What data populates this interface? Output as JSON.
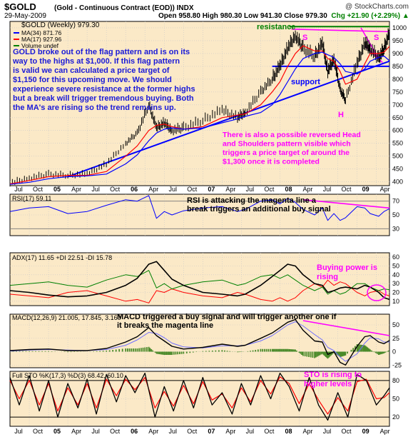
{
  "header": {
    "symbol": "$GOLD",
    "name": "(Gold - Continuous Contract (EOD)) INDX",
    "date": "29-May-2009",
    "brand": "@ StockCharts.com",
    "ohlc": "Open 958.80  High 980.30  Low 941.30  Close 979.30",
    "chg": "Chg +21.90 (+2.29%) ▲"
  },
  "colors": {
    "panel_bg": "#fbe9c7",
    "price": "#000000",
    "ma34": "#0000ff",
    "ma17": "#ff0000",
    "trend": "#0000ff",
    "magenta": "#ff00ff",
    "resistance": "#008000",
    "osc_red": "#ff0000",
    "osc_green": "#008000",
    "macd_signal": "#7070ff",
    "hist": "#4a8a2a"
  },
  "time_axis": {
    "labels": [
      "Jul",
      "Oct",
      "05",
      "Apr",
      "Jul",
      "Oct",
      "06",
      "Apr",
      "Jul",
      "Oct",
      "07",
      "Apr",
      "Jul",
      "Oct",
      "08",
      "Apr",
      "Jul",
      "Oct",
      "09",
      "Apr"
    ],
    "bold": [
      2,
      6,
      10,
      14,
      18
    ]
  },
  "chart_data": [
    {
      "type": "line",
      "title": "$GOLD (Weekly) 979.30",
      "legend": [
        {
          "name": "MA(34) 871.76"
        },
        {
          "name": "MA(17) 927.96"
        },
        {
          "name": "Volume undef"
        }
      ],
      "ylim": [
        385,
        1025
      ],
      "y_ticks": [
        400,
        450,
        500,
        550,
        600,
        650,
        700,
        750,
        800,
        850,
        900,
        950,
        1000
      ],
      "x_range": [
        2004.5,
        2009.42
      ],
      "x": [
        2004.5,
        2004.75,
        2005.0,
        2005.25,
        2005.5,
        2005.75,
        2006.0,
        2006.15,
        2006.3,
        2006.4,
        2006.5,
        2006.6,
        2006.75,
        2007.0,
        2007.25,
        2007.45,
        2007.55,
        2007.75,
        2007.9,
        2008.0,
        2008.1,
        2008.2,
        2008.3,
        2008.45,
        2008.55,
        2008.62,
        2008.7,
        2008.78,
        2008.85,
        2009.0,
        2009.1,
        2009.17,
        2009.28,
        2009.35,
        2009.42
      ],
      "series": [
        {
          "values": [
            395,
            415,
            430,
            425,
            430,
            470,
            550,
            590,
            700,
            610,
            630,
            600,
            610,
            640,
            680,
            650,
            670,
            750,
            800,
            850,
            920,
            970,
            920,
            890,
            940,
            830,
            880,
            760,
            720,
            860,
            940,
            920,
            880,
            920,
            980
          ]
        },
        {
          "values": [
            392,
            405,
            420,
            425,
            425,
            440,
            500,
            540,
            600,
            620,
            625,
            615,
            605,
            615,
            650,
            660,
            665,
            700,
            750,
            790,
            850,
            900,
            930,
            910,
            910,
            880,
            870,
            830,
            780,
            800,
            860,
            900,
            900,
            905,
            928
          ]
        },
        {
          "values": [
            390,
            398,
            412,
            420,
            423,
            430,
            470,
            505,
            560,
            590,
            605,
            610,
            605,
            610,
            630,
            645,
            655,
            670,
            700,
            740,
            790,
            840,
            880,
            900,
            905,
            895,
            885,
            860,
            830,
            820,
            840,
            870,
            885,
            890,
            872
          ]
        }
      ],
      "annotations": [
        {
          "text": "resistance"
        },
        {
          "text": "support"
        },
        {
          "text": "S"
        },
        {
          "text": "S"
        },
        {
          "text": "H"
        }
      ]
    },
    {
      "type": "line",
      "title": "RSI(17) 59.11",
      "ylim": [
        20,
        80
      ],
      "y_ticks": [
        30,
        50,
        70
      ],
      "x": [
        2004.5,
        2004.75,
        2005.0,
        2005.25,
        2005.5,
        2005.75,
        2006.0,
        2006.15,
        2006.3,
        2006.4,
        2006.5,
        2006.6,
        2006.75,
        2007.0,
        2007.25,
        2007.45,
        2007.55,
        2007.75,
        2007.9,
        2008.0,
        2008.1,
        2008.2,
        2008.3,
        2008.45,
        2008.55,
        2008.62,
        2008.7,
        2008.78,
        2008.85,
        2009.0,
        2009.1,
        2009.17,
        2009.28,
        2009.35,
        2009.42
      ],
      "series": [
        {
          "values": [
            55,
            60,
            62,
            52,
            55,
            64,
            72,
            70,
            78,
            45,
            55,
            50,
            56,
            60,
            62,
            55,
            58,
            70,
            72,
            66,
            74,
            68,
            58,
            50,
            60,
            42,
            52,
            42,
            46,
            62,
            60,
            52,
            48,
            55,
            59
          ]
        }
      ]
    },
    {
      "type": "line",
      "title": "ADX(17) 11.65 +DI 22.51 -DI 15.78",
      "ylim": [
        5,
        65
      ],
      "y_ticks": [
        10,
        20,
        30,
        40,
        50,
        60
      ],
      "x": [
        2004.5,
        2004.75,
        2005.0,
        2005.25,
        2005.5,
        2005.75,
        2006.0,
        2006.15,
        2006.3,
        2006.4,
        2006.5,
        2006.6,
        2006.75,
        2007.0,
        2007.25,
        2007.45,
        2007.55,
        2007.75,
        2007.9,
        2008.0,
        2008.1,
        2008.2,
        2008.3,
        2008.45,
        2008.55,
        2008.62,
        2008.7,
        2008.78,
        2008.85,
        2009.0,
        2009.1,
        2009.17,
        2009.28,
        2009.35,
        2009.42
      ],
      "series": [
        {
          "name": "ADX(17)",
          "values": [
            22,
            20,
            17,
            15,
            16,
            20,
            28,
            36,
            52,
            55,
            45,
            35,
            28,
            20,
            18,
            16,
            18,
            28,
            38,
            45,
            52,
            50,
            40,
            30,
            28,
            20,
            22,
            25,
            26,
            24,
            28,
            26,
            20,
            14,
            12
          ]
        },
        {
          "name": "+DI",
          "values": [
            28,
            30,
            32,
            28,
            26,
            34,
            40,
            38,
            45,
            25,
            30,
            24,
            28,
            32,
            34,
            28,
            30,
            38,
            40,
            36,
            40,
            34,
            28,
            22,
            26,
            18,
            22,
            18,
            20,
            30,
            30,
            26,
            22,
            24,
            23
          ]
        },
        {
          "name": "-DI",
          "values": [
            18,
            16,
            14,
            20,
            22,
            16,
            10,
            12,
            8,
            22,
            20,
            24,
            20,
            16,
            14,
            20,
            18,
            12,
            10,
            14,
            10,
            14,
            22,
            30,
            26,
            34,
            28,
            32,
            30,
            20,
            16,
            20,
            22,
            18,
            16
          ]
        }
      ]
    },
    {
      "type": "line",
      "title": "MACD(12,26,9) 21.005, 17.845, 3.160",
      "ylim": [
        -30,
        70
      ],
      "y_ticks": [
        -25,
        0,
        25,
        50
      ],
      "x": [
        2004.5,
        2004.75,
        2005.0,
        2005.25,
        2005.5,
        2005.75,
        2006.0,
        2006.15,
        2006.3,
        2006.4,
        2006.5,
        2006.6,
        2006.75,
        2007.0,
        2007.25,
        2007.45,
        2007.55,
        2007.75,
        2007.9,
        2008.0,
        2008.1,
        2008.2,
        2008.3,
        2008.45,
        2008.55,
        2008.62,
        2008.7,
        2008.78,
        2008.85,
        2009.0,
        2009.1,
        2009.17,
        2009.28,
        2009.35,
        2009.42
      ],
      "series": [
        {
          "name": "MACD",
          "values": [
            2,
            4,
            5,
            2,
            2,
            6,
            18,
            28,
            45,
            30,
            20,
            10,
            5,
            8,
            14,
            10,
            12,
            25,
            35,
            45,
            55,
            60,
            40,
            20,
            18,
            -5,
            0,
            -20,
            -25,
            10,
            28,
            30,
            18,
            15,
            21
          ]
        },
        {
          "name": "Signal",
          "values": [
            1,
            3,
            4,
            3,
            2,
            4,
            12,
            22,
            36,
            34,
            26,
            16,
            9,
            7,
            11,
            11,
            12,
            20,
            30,
            40,
            50,
            56,
            48,
            32,
            22,
            8,
            2,
            -10,
            -18,
            -4,
            16,
            26,
            24,
            18,
            18
          ]
        },
        {
          "name": "Histogram",
          "values": [
            1,
            1,
            1,
            -1,
            0,
            2,
            6,
            6,
            9,
            -4,
            -6,
            -6,
            -4,
            1,
            3,
            -1,
            0,
            5,
            5,
            5,
            5,
            4,
            -8,
            -12,
            -4,
            -13,
            -2,
            -10,
            -7,
            14,
            12,
            4,
            -6,
            -3,
            3
          ]
        }
      ]
    },
    {
      "type": "line",
      "title": "Full STO %K(17,3) %D(3) 68.42, 60.10",
      "ylim": [
        5,
        95
      ],
      "y_ticks": [
        20,
        50,
        80
      ],
      "x": [
        2004.5,
        2004.62,
        2004.75,
        2004.88,
        2005.0,
        2005.12,
        2005.25,
        2005.38,
        2005.5,
        2005.62,
        2005.75,
        2005.88,
        2006.0,
        2006.12,
        2006.25,
        2006.38,
        2006.5,
        2006.62,
        2006.75,
        2006.88,
        2007.0,
        2007.12,
        2007.25,
        2007.38,
        2007.5,
        2007.62,
        2007.75,
        2007.88,
        2008.0,
        2008.12,
        2008.25,
        2008.38,
        2008.5,
        2008.62,
        2008.75,
        2008.88,
        2009.0,
        2009.12,
        2009.25,
        2009.35,
        2009.42
      ],
      "series": [
        {
          "name": "%K",
          "values": [
            85,
            40,
            88,
            30,
            80,
            20,
            75,
            35,
            82,
            25,
            90,
            45,
            88,
            60,
            92,
            20,
            70,
            30,
            80,
            35,
            85,
            40,
            60,
            25,
            75,
            40,
            88,
            50,
            92,
            70,
            30,
            85,
            40,
            15,
            60,
            20,
            90,
            80,
            40,
            55,
            68
          ]
        },
        {
          "name": "%D",
          "values": [
            80,
            50,
            80,
            40,
            75,
            30,
            68,
            40,
            75,
            35,
            82,
            55,
            82,
            65,
            85,
            35,
            62,
            38,
            72,
            42,
            78,
            48,
            58,
            35,
            68,
            45,
            80,
            58,
            86,
            75,
            42,
            75,
            48,
            25,
            52,
            30,
            78,
            82,
            50,
            52,
            60
          ]
        }
      ]
    }
  ],
  "notes": {
    "main_text": "GOLD broke out of the flag pattern and is on its way to the highs at $1,000. If this flag pattern is valid we can calculated a price target of $1,150 for this upcoming move. We should experience severe resistance at the former highs but a break will trigger tremendous buying. Both the MA's are rising so the trend remains up.",
    "hs_text": "There is also a possible reversed Head and Shoulders pattern visible which triggers a price target of around the $1,300 once it is completed",
    "rsi_text": "RSI is attacking the magenta line a break triggers an additional buy signal",
    "adx_text": "Buying power is rising",
    "macd_text": "MACD triggered a buy signal and will trigger another one if it breaks the magenta line",
    "sto_text": "STO is rising to higher levels"
  }
}
